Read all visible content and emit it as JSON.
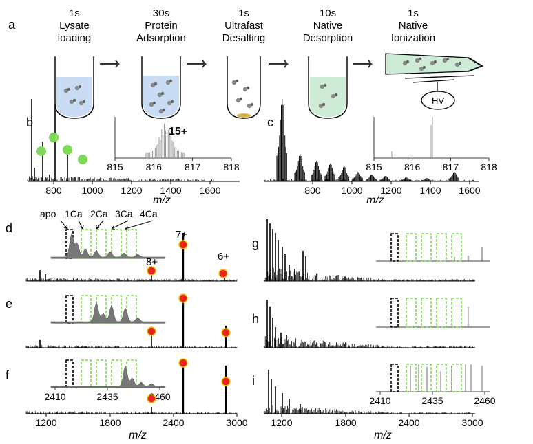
{
  "panel_a": {
    "letter": "a",
    "steps": [
      {
        "time": "1s",
        "line1": "Lysate",
        "line2": "loading",
        "fill": "#c9dcf3"
      },
      {
        "time": "30s",
        "line1": "Protein",
        "line2": "Adsorption",
        "fill": "#c9dcf3"
      },
      {
        "time": "1s",
        "line1": "Ultrafast",
        "line2": "Desalting",
        "fill": "#ffffff"
      },
      {
        "time": "10s",
        "line1": "Native",
        "line2": "Desorption",
        "fill": "#cdebd5"
      },
      {
        "time": "1s",
        "line1": "Native",
        "line2": "Ionization",
        "fill": "#cdebd5"
      }
    ],
    "hv_label": "HV"
  },
  "panel_letters": {
    "b": "b",
    "c": "c",
    "d": "d",
    "e": "e",
    "f": "f",
    "g": "g",
    "h": "h",
    "i": "i"
  },
  "top_axis": {
    "ticks": [
      "800",
      "1000",
      "1200",
      "1400",
      "1600"
    ],
    "xlabel": "m/z",
    "inset_ticks": [
      "815",
      "816",
      "817",
      "818"
    ],
    "charge_label": "15+"
  },
  "bottom_axis": {
    "ticks": [
      "1200",
      "1800",
      "2400",
      "3000"
    ],
    "xlabel": "m/z",
    "inset_ticks": [
      "2410",
      "2435",
      "2460"
    ]
  },
  "peak_labels": {
    "p8": "8+",
    "p7": "7+",
    "p6": "6+"
  },
  "calcium_labels": [
    "apo",
    "1Ca",
    "2Ca",
    "3Ca",
    "4Ca"
  ],
  "colors": {
    "green_marker": "#7ed957",
    "red_marker": "#e8261b",
    "marker_ring": "#f3c400",
    "box_green": "#7ed957",
    "box_black": "#000000"
  }
}
